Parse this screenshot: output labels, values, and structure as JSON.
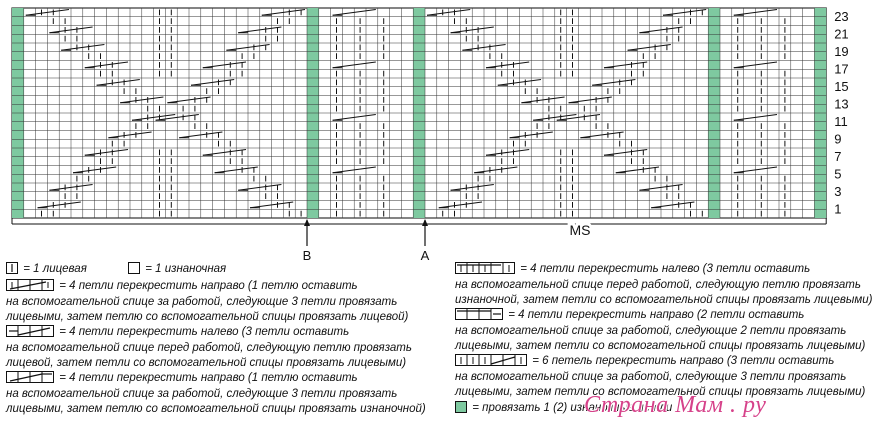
{
  "chart": {
    "row_labels": [
      "23",
      "21",
      "19",
      "17",
      "15",
      "13",
      "11",
      "9",
      "7",
      "5",
      "3",
      "1"
    ],
    "marker_b": "B",
    "marker_a": "A",
    "ms_label": "MS",
    "colors": {
      "purl_col": "#7ec9a0",
      "grid": "#333333"
    }
  },
  "legend": {
    "knit": "= 1 лицевая",
    "purl": "= 1 изнаночная",
    "c1": "= 4 петли перекрестить направо (1 петлю оставить",
    "c1b": "на вспомогательной спице за работой, следующие 3 петли провязать",
    "c1c": "лицевыми, затем петлю со вспомогательной спицы провязать лицевой)",
    "c2": "= 4 петли перекрестить налево (3 петли оставить",
    "c2b": "на вспомогательной спице перед работой, следующую петлю провязать",
    "c2c": "лицевой, затем петли со вспомогательной спицы провязать лицевыми)",
    "c3": "= 4 петли перекрестить направо (1 петлю оставить",
    "c3b": "на вспомогательной спице за работой, следующие 3 петли провязать",
    "c3c": "лицевыми, затем петлю со вспомогательной спицы провязать изнаночной)",
    "c4": "= 4 петли перекрестить налево (3 петли оставить",
    "c4b": "на вспомогательной спице перед работой, следующую петлю провязать",
    "c4c": "изнаночной, затем петли со вспомогательной спицы провязать лицевыми)",
    "c5": "= 4 петли перекрестить направо (2 петли оставить",
    "c5b": "на вспомогательной спице за работой, следующие 2 петли провязать",
    "c5c": "лицевыми, затем петли со вспомогательной спицы провязать лицевыми)",
    "c6": "= 6 петель перекрестить направо (3 петли оставить",
    "c6b": "на вспомогательной спице за работой, следующие 3 петли провязать",
    "c6c": "лицевыми, затем петли со вспомогательной спицы провязать лицевыми)",
    "green": "= провязать 1 (2) изнаночные петли"
  },
  "watermark": "Страна Мам . ру"
}
